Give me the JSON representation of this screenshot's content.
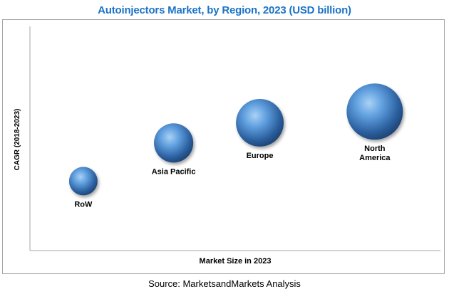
{
  "title": "Autoinjectors Market, by Region, 2023 (USD billion)",
  "source": "Source: MarketsandMarkets Analysis",
  "chart_data": {
    "type": "scatter",
    "subtype": "bubble",
    "title": "Autoinjectors Market, by Region, 2023 (USD billion)",
    "xlabel": "Market Size in 2023",
    "ylabel": "CAGR (2018-2023)",
    "xlim": [
      0,
      10
    ],
    "ylim": [
      0,
      10
    ],
    "grid": false,
    "legend": "none",
    "bubble_color": "#3f7fc6",
    "points": [
      {
        "label": "RoW",
        "x": 1.3,
        "y": 3.1,
        "size": 1.0
      },
      {
        "label": "Asia Pacific",
        "x": 3.5,
        "y": 4.8,
        "size": 1.9
      },
      {
        "label": "Europe",
        "x": 5.6,
        "y": 5.7,
        "size": 2.8
      },
      {
        "label": "North America",
        "label_lines": [
          "North",
          "America"
        ],
        "x": 8.4,
        "y": 6.2,
        "size": 3.9
      }
    ]
  }
}
